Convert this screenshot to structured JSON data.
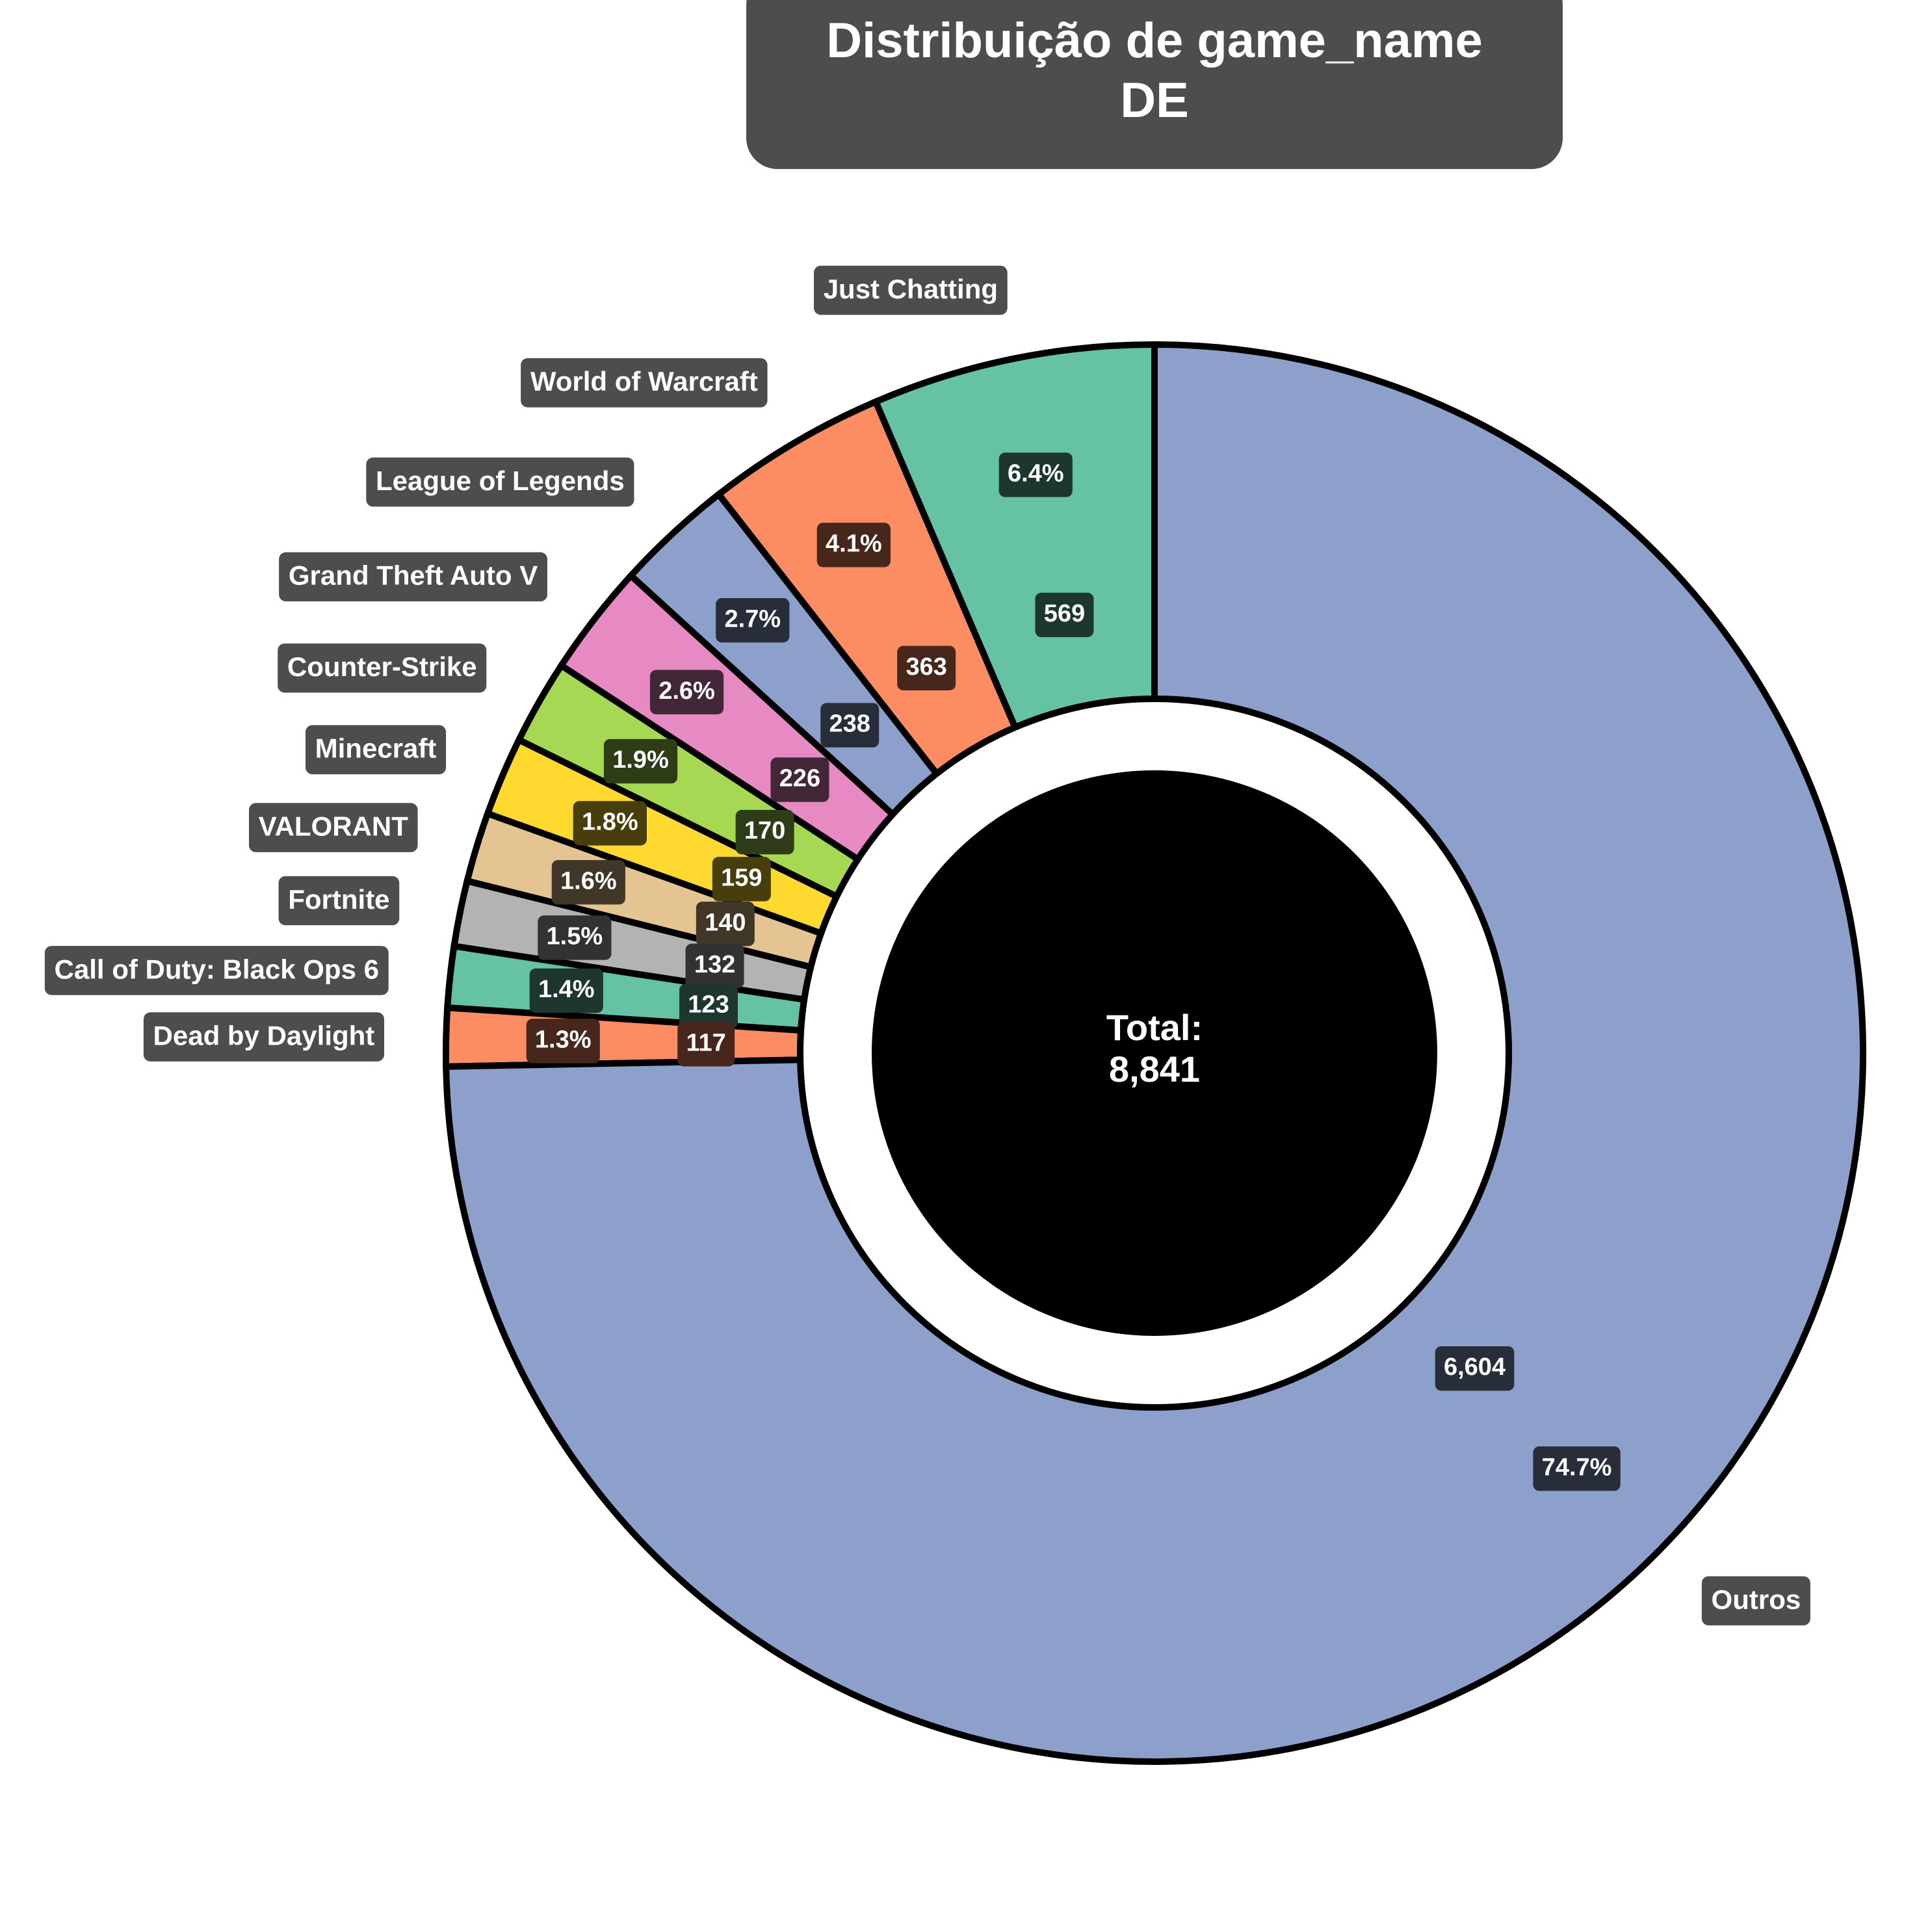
{
  "chart_data": {
    "type": "pie",
    "variant": "donut",
    "title": [
      "Distribuição de game_name",
      "DE"
    ],
    "total_label": "Total:",
    "total_value": "8,841",
    "slices": [
      {
        "label": "Just Chatting",
        "value": 569,
        "value_text": "569",
        "percent_text": "6.4%",
        "color": "#66c2a5"
      },
      {
        "label": "World of Warcraft",
        "value": 363,
        "value_text": "363",
        "percent_text": "4.1%",
        "color": "#fc8d62"
      },
      {
        "label": "League of Legends",
        "value": 238,
        "value_text": "238",
        "percent_text": "2.7%",
        "color": "#8da0cb"
      },
      {
        "label": "Grand Theft Auto V",
        "value": 226,
        "value_text": "226",
        "percent_text": "2.6%",
        "color": "#e78ac3"
      },
      {
        "label": "Counter-Strike",
        "value": 170,
        "value_text": "170",
        "percent_text": "1.9%",
        "color": "#a6d854"
      },
      {
        "label": "Minecraft",
        "value": 159,
        "value_text": "159",
        "percent_text": "1.8%",
        "color": "#ffd92f"
      },
      {
        "label": "VALORANT",
        "value": 140,
        "value_text": "140",
        "percent_text": "1.6%",
        "color": "#e5c494"
      },
      {
        "label": "Fortnite",
        "value": 132,
        "value_text": "132",
        "percent_text": "1.5%",
        "color": "#b3b3b3"
      },
      {
        "label": "Call of Duty: Black Ops 6",
        "value": 123,
        "value_text": "123",
        "percent_text": "1.4%",
        "color": "#66c2a5"
      },
      {
        "label": "Dead by Daylight",
        "value": 117,
        "value_text": "117",
        "percent_text": "1.3%",
        "color": "#fc8d62"
      },
      {
        "label": "Outros",
        "value": 6604,
        "value_text": "6,604",
        "percent_text": "74.7%",
        "color": "#8da0cb"
      }
    ],
    "start_angle": "12 o'clock",
    "direction": "counterclockwise",
    "legend": "none"
  },
  "colors": {
    "edge": "#000000",
    "center_disc": "#000000",
    "title_box": "#4d4d4d",
    "label_box": "#4d4d4d"
  }
}
